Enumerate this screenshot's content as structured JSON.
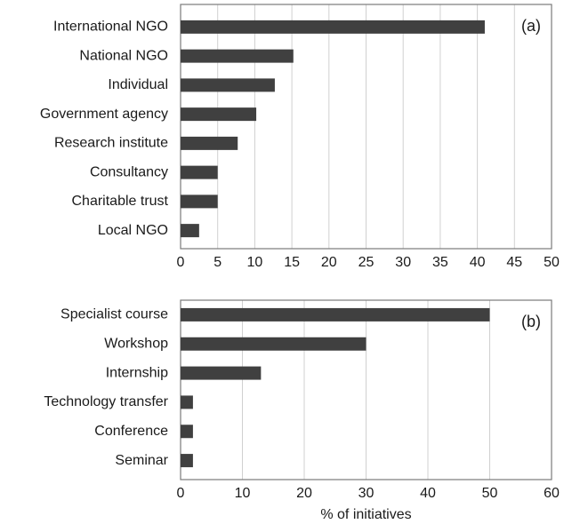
{
  "chart_data": [
    {
      "type": "bar",
      "orientation": "horizontal",
      "annotation": "(a)",
      "categories": [
        "International NGO",
        "National NGO",
        "Individual",
        "Government agency",
        "Research institute",
        "Consultancy",
        "Charitable trust",
        "Local NGO"
      ],
      "values": [
        41,
        15.2,
        12.7,
        10.2,
        7.7,
        5,
        5,
        2.5
      ],
      "color": "#404040",
      "xlim": [
        0,
        50
      ],
      "xticks": [
        0,
        5,
        10,
        15,
        20,
        25,
        30,
        35,
        40,
        45,
        50
      ],
      "grid": true
    },
    {
      "type": "bar",
      "orientation": "horizontal",
      "annotation": "(b)",
      "xlabel": "% of initiatives",
      "categories": [
        "Specialist course",
        "Workshop",
        "Internship",
        "Technology transfer",
        "Conference",
        "Seminar"
      ],
      "values": [
        50,
        30,
        13,
        2,
        2,
        2
      ],
      "color": "#404040",
      "xlim": [
        0,
        60
      ],
      "xticks": [
        0,
        10,
        20,
        30,
        40,
        50,
        60
      ],
      "grid": true
    }
  ]
}
